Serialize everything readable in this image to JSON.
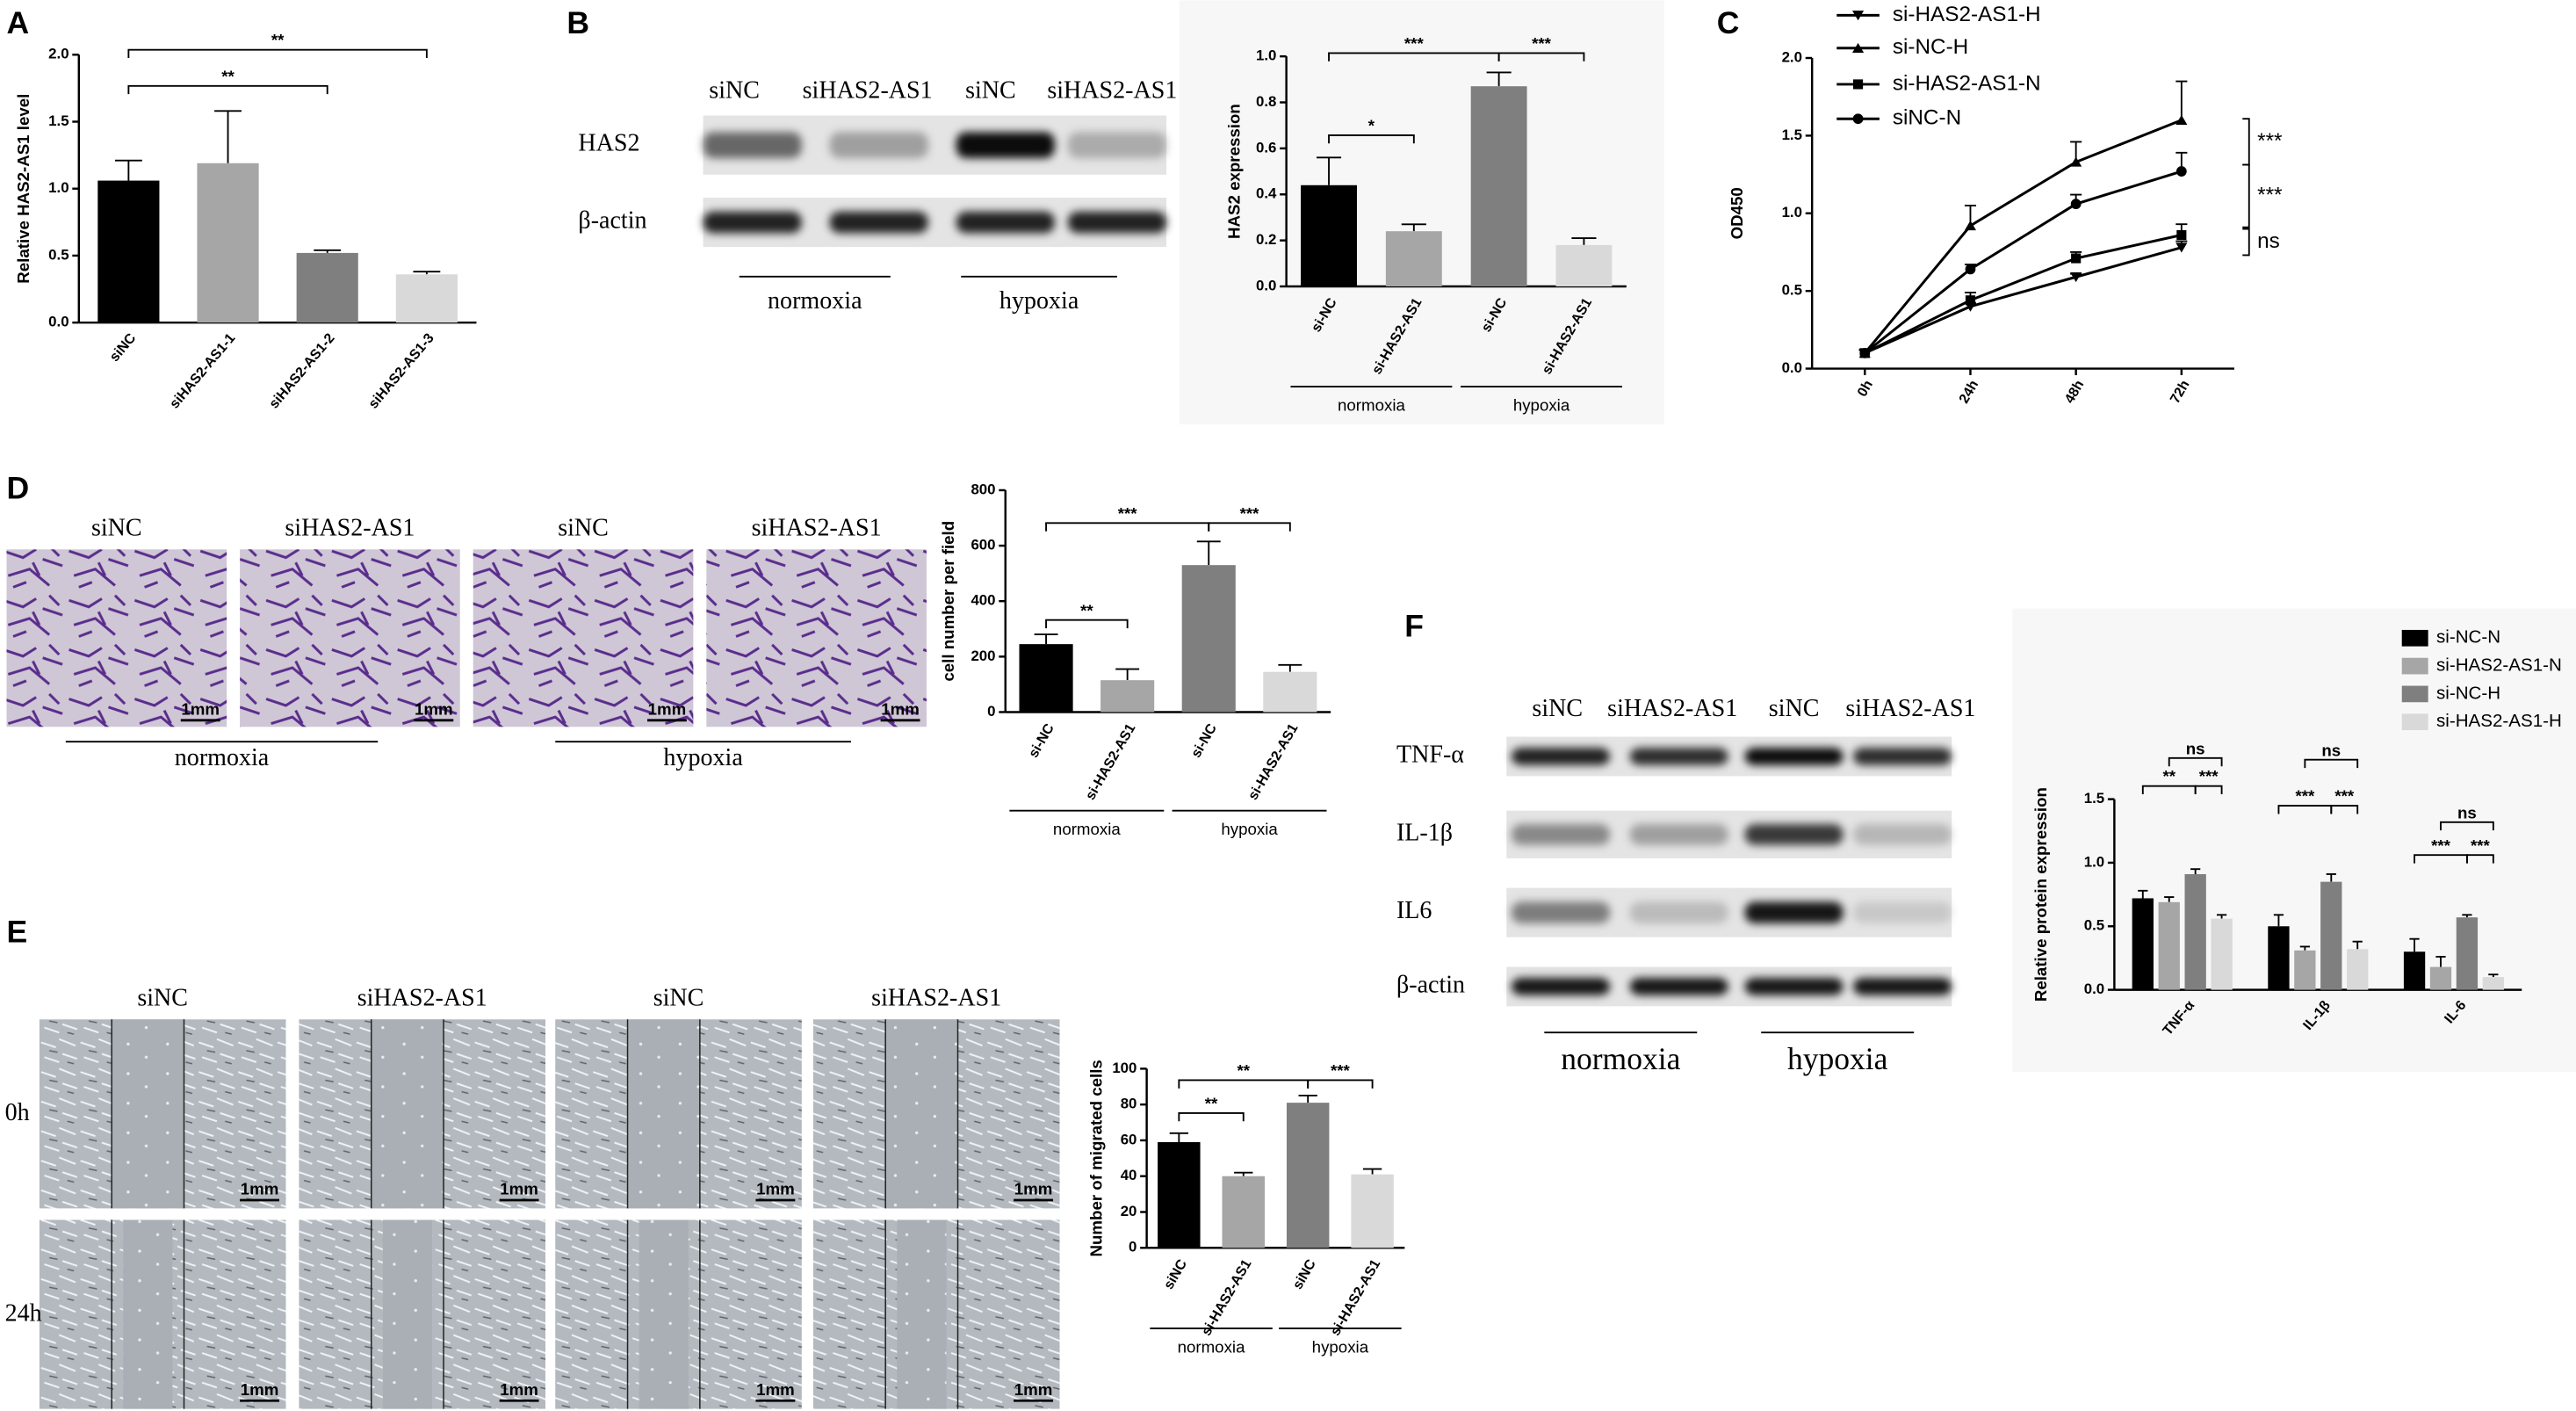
{
  "figure": {
    "panel_labels": [
      "A",
      "B",
      "C",
      "D",
      "E",
      "F"
    ],
    "blot_b": {
      "lanes": [
        "siNC",
        "siHAS2-AS1",
        "siNC",
        "siHAS2-AS1"
      ],
      "rows": [
        "HAS2",
        "β-actin"
      ],
      "groups": [
        "normoxia",
        "hypoxia"
      ]
    },
    "micrographs_d": {
      "columns": [
        "siNC",
        "siHAS2-AS1",
        "siNC",
        "siHAS2-AS1"
      ],
      "scale_bar": "1mm",
      "groups": [
        "normoxia",
        "hypoxia"
      ]
    },
    "micrographs_e": {
      "columns": [
        "siNC",
        "siHAS2-AS1",
        "siNC",
        "siHAS2-AS1"
      ],
      "rows": [
        "0h",
        "24h"
      ],
      "scale_bar": "1mm"
    },
    "blot_f": {
      "lanes": [
        "siNC",
        "siHAS2-AS1",
        "siNC",
        "siHAS2-AS1"
      ],
      "rows": [
        "TNF-α",
        "IL-1β",
        "IL6",
        "β-actin"
      ],
      "groups": [
        "normoxia",
        "hypoxia"
      ]
    }
  },
  "chart_data": [
    {
      "type": "bar",
      "ylabel": "Relative HAS2-AS1 level",
      "categories": [
        "siNC",
        "siHAS2-AS1-1",
        "siHAS2-AS1-2",
        "siHAS2-AS1-3"
      ],
      "values": [
        1.06,
        1.19,
        0.52,
        0.36
      ],
      "errors": [
        0.15,
        0.39,
        0.02,
        0.02
      ],
      "colors": [
        "#000000",
        "#a6a6a6",
        "#7f7f7f",
        "#d9d9d9"
      ],
      "ylim": [
        0,
        2
      ],
      "yticks": [
        {
          "value": 0,
          "label": "0.0"
        },
        {
          "value": 0.5,
          "label": "0.5"
        },
        {
          "value": 1,
          "label": "1.0"
        },
        {
          "value": 1.5,
          "label": "1.5"
        },
        {
          "value": 2,
          "label": "2.0"
        }
      ],
      "annotations": [
        "**",
        "**"
      ]
    },
    {
      "type": "bar",
      "ylabel": "HAS2 expression",
      "categories": [
        "si-NC",
        "si-HAS2-AS1",
        "si-NC",
        "si-HAS2-AS1"
      ],
      "values": [
        0.44,
        0.24,
        0.87,
        0.18
      ],
      "errors": [
        0.12,
        0.03,
        0.06,
        0.03
      ],
      "colors": [
        "#000000",
        "#a6a6a6",
        "#7f7f7f",
        "#d9d9d9"
      ],
      "ylim": [
        0,
        1
      ],
      "yticks": [
        {
          "value": 0,
          "label": "0.0"
        },
        {
          "value": 0.2,
          "label": "0.2"
        },
        {
          "value": 0.4,
          "label": "0.4"
        },
        {
          "value": 0.6,
          "label": "0.6"
        },
        {
          "value": 0.8,
          "label": "0.8"
        },
        {
          "value": 1,
          "label": "1.0"
        }
      ],
      "annotations": [
        "*",
        "***",
        "***"
      ],
      "groups": [
        "normoxia",
        "hypoxia"
      ]
    },
    {
      "type": "line",
      "ylabel": "OD450",
      "categories": [
        "0h",
        "24h",
        "48h",
        "72h"
      ],
      "series": [
        {
          "name": "si-HAS2-AS1-H",
          "color": "#000000",
          "marker": "triangle-down",
          "values": [
            0.1,
            0.4,
            0.59,
            0.78
          ],
          "errors": [
            0.02,
            0.02,
            0.02,
            0.04
          ]
        },
        {
          "name": "si-NC-H",
          "color": "#000000",
          "marker": "triangle-up",
          "values": [
            0.1,
            0.92,
            1.33,
            1.6
          ],
          "errors": [
            0.02,
            0.13,
            0.13,
            0.25
          ]
        },
        {
          "name": "si-HAS2-AS1-N",
          "color": "#000000",
          "marker": "square",
          "values": [
            0.1,
            0.44,
            0.71,
            0.86
          ],
          "errors": [
            0.02,
            0.05,
            0.04,
            0.07
          ]
        },
        {
          "name": "siNC-N",
          "color": "#000000",
          "marker": "circle",
          "values": [
            0.1,
            0.64,
            1.06,
            1.27
          ],
          "errors": [
            0.02,
            0.03,
            0.06,
            0.12
          ]
        }
      ],
      "ylim": [
        0,
        2
      ],
      "yticks": [
        {
          "value": 0,
          "label": "0.0"
        },
        {
          "value": 0.5,
          "label": "0.5"
        },
        {
          "value": 1,
          "label": "1.0"
        },
        {
          "value": 1.5,
          "label": "1.5"
        },
        {
          "value": 2,
          "label": "2.0"
        }
      ],
      "annotations": [
        "***",
        "***",
        "ns"
      ],
      "legend": "upper left"
    },
    {
      "type": "bar",
      "ylabel": "cell number per field",
      "categories": [
        "si-NC",
        "si-HAS2-AS1",
        "si-NC",
        "si-HAS2-AS1"
      ],
      "values": [
        245,
        115,
        530,
        145
      ],
      "errors": [
        35,
        40,
        85,
        25
      ],
      "colors": [
        "#000000",
        "#a6a6a6",
        "#7f7f7f",
        "#d9d9d9"
      ],
      "ylim": [
        0,
        800
      ],
      "yticks": [
        0,
        200,
        400,
        600,
        800
      ],
      "annotations": [
        "**",
        "***",
        "***"
      ],
      "groups": [
        "normoxia",
        "hypoxia"
      ]
    },
    {
      "type": "bar",
      "ylabel": "Number of migrated cells",
      "categories": [
        "siNC",
        "si-HAS2-AS1",
        "siNC",
        "si-HAS2-AS1"
      ],
      "values": [
        59,
        40,
        81,
        41
      ],
      "errors": [
        5,
        2,
        4,
        3
      ],
      "colors": [
        "#000000",
        "#a6a6a6",
        "#7f7f7f",
        "#d9d9d9"
      ],
      "ylim": [
        0,
        100
      ],
      "yticks": [
        0,
        20,
        40,
        60,
        80,
        100
      ],
      "annotations": [
        "**",
        "**",
        "***"
      ],
      "groups": [
        "normoxia",
        "hypoxia"
      ]
    },
    {
      "type": "grouped-bar",
      "ylabel": "Relative protein expression",
      "categories": [
        "TNF-α",
        "IL-1β",
        "IL-6"
      ],
      "series": [
        {
          "name": "si-NC-N",
          "color": "#000000",
          "values": [
            0.72,
            0.5,
            0.3
          ],
          "errors": [
            0.06,
            0.09,
            0.1
          ]
        },
        {
          "name": "si-HAS2-AS1-N",
          "color": "#a6a6a6",
          "values": [
            0.69,
            0.31,
            0.18
          ],
          "errors": [
            0.04,
            0.03,
            0.08
          ]
        },
        {
          "name": "si-NC-H",
          "color": "#7f7f7f",
          "values": [
            0.91,
            0.85,
            0.57
          ],
          "errors": [
            0.04,
            0.06,
            0.02
          ]
        },
        {
          "name": "si-HAS2-AS1-H",
          "color": "#d9d9d9",
          "values": [
            0.56,
            0.32,
            0.1
          ],
          "errors": [
            0.03,
            0.06,
            0.02
          ]
        }
      ],
      "ylim": [
        0,
        1.5
      ],
      "yticks": [
        {
          "value": 0,
          "label": "0.0"
        },
        {
          "value": 0.5,
          "label": "0.5"
        },
        {
          "value": 1,
          "label": "1.0"
        },
        {
          "value": 1.5,
          "label": "1.5"
        }
      ],
      "annotations": [
        [
          "**",
          "***",
          "ns"
        ],
        [
          "***",
          "***",
          "ns"
        ],
        [
          "***",
          "***",
          "ns"
        ]
      ],
      "legend": "upper right"
    }
  ]
}
